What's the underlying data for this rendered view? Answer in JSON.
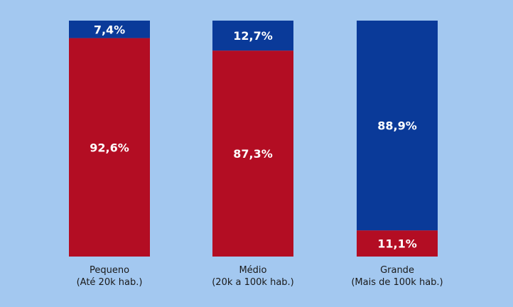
{
  "chart_data": {
    "type": "bar",
    "stacked": true,
    "percent_stacked": true,
    "categories": [
      [
        "Pequeno",
        "(Até 20k hab.)"
      ],
      [
        "Médio",
        "(20k a 100k hab.)"
      ],
      [
        "Grande",
        "(Mais de 100k hab.)"
      ]
    ],
    "series": [
      {
        "values": [
          92.6,
          87.3,
          11.1
        ],
        "labels": [
          "92,6%",
          "87,3%",
          "11,1%"
        ],
        "color": "#b30d23"
      },
      {
        "values": [
          7.4,
          12.7,
          88.9
        ],
        "labels": [
          "7,4%",
          "12,7%",
          "88,9%"
        ],
        "color": "#0a3a99"
      }
    ],
    "ylim": [
      0,
      100
    ],
    "grid": false,
    "legend": "none"
  },
  "colors": {
    "background": "#a3c8f0",
    "label_text": "#ffffff",
    "category_text": "#1a1a1a"
  }
}
